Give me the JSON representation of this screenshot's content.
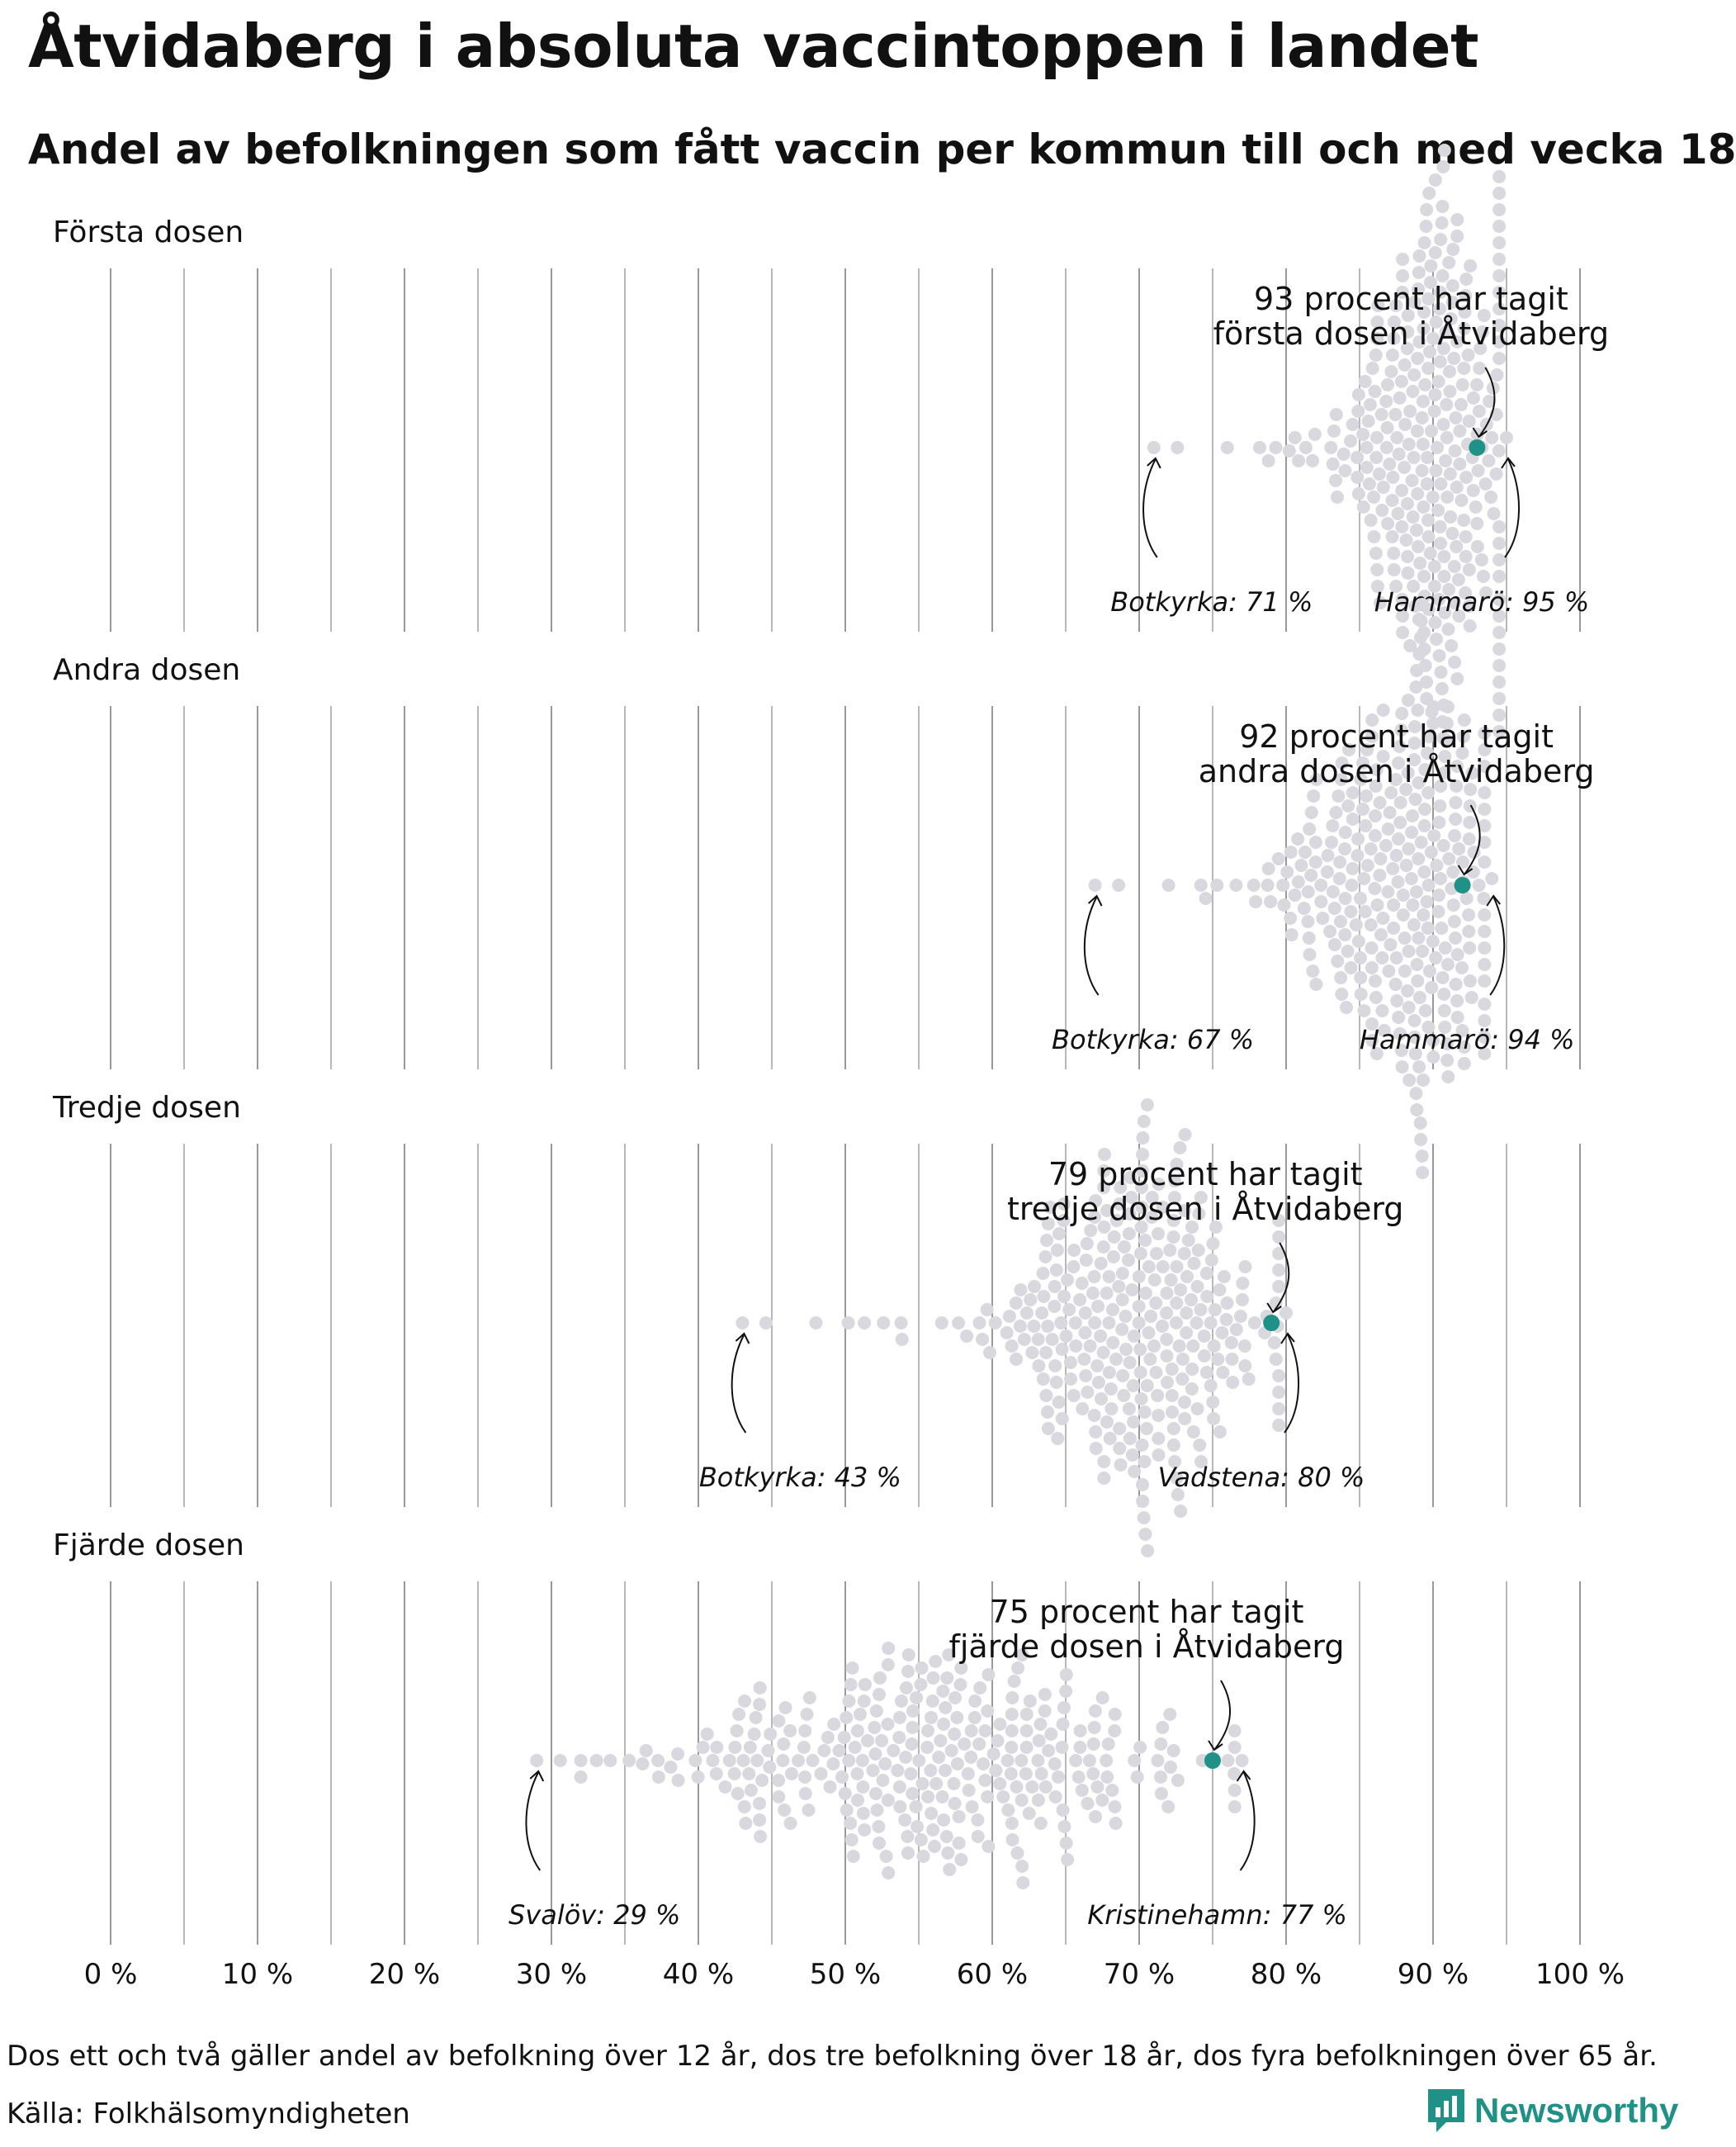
{
  "title": "Åtvidaberg i absoluta vaccintoppen i landet",
  "subtitle": "Andel av befolkningen som fått vaccin per kommun till och med vecka 18",
  "footnote": "Dos ett och två gäller andel av befolkning över 12 år, dos tre befolkning över 18 år, dos fyra befolkningen över 65 år.",
  "source": "Källa: Folkhälsomyndigheten",
  "brand": "Newsworthy",
  "colors": {
    "highlight": "#1f9186",
    "dot": "#d8d8de",
    "grid": "#999999",
    "text": "#111111"
  },
  "chart_data": {
    "type": "scatter",
    "subtype": "beeswarm",
    "x_ticks": [
      "0 %",
      "10 %",
      "20 %",
      "30 %",
      "40 %",
      "50 %",
      "60 %",
      "70 %",
      "80 %",
      "90 %",
      "100 %"
    ],
    "xlim": [
      0,
      100
    ],
    "grid": true,
    "panels": [
      {
        "label": "Första dosen",
        "highlight": {
          "name": "Åtvidaberg",
          "value": 93,
          "annotation": [
            "93 procent har tagit",
            "första dosen i Åtvidaberg"
          ]
        },
        "min": {
          "label": "Botkyrka: 71 %",
          "value": 71
        },
        "max": {
          "label": "Hammarö: 95 %",
          "value": 95
        },
        "distribution": {
          "center": 90,
          "spread": 3.2,
          "count": 290
        }
      },
      {
        "label": "Andra dosen",
        "highlight": {
          "name": "Åtvidaberg",
          "value": 92,
          "annotation": [
            "92 procent har tagit",
            "andra dosen i Åtvidaberg"
          ]
        },
        "min": {
          "label": "Botkyrka: 67 %",
          "value": 67
        },
        "max": {
          "label": "Hammarö: 94 %",
          "value": 94
        },
        "distribution": {
          "center": 88,
          "spread": 3.8,
          "count": 290
        }
      },
      {
        "label": "Tredje dosen",
        "highlight": {
          "name": "Åtvidaberg",
          "value": 79,
          "annotation": [
            "79 procent har tagit",
            "tredje dosen i Åtvidaberg"
          ]
        },
        "min": {
          "label": "Botkyrka: 43 %",
          "value": 43
        },
        "max": {
          "label": "Vadstena: 80 %",
          "value": 80
        },
        "distribution": {
          "center": 70,
          "spread": 5.0,
          "count": 290
        }
      },
      {
        "label": "Fjärde dosen",
        "highlight": {
          "name": "Åtvidaberg",
          "value": 75,
          "annotation": [
            "75 procent har tagit",
            "fjärde dosen i Åtvidaberg"
          ]
        },
        "min": {
          "label": "Svalöv: 29 %",
          "value": 29
        },
        "max": {
          "label": "Kristinehamn: 77 %",
          "value": 77
        },
        "distribution": {
          "center": 56,
          "spread": 9.5,
          "count": 290
        }
      }
    ]
  }
}
